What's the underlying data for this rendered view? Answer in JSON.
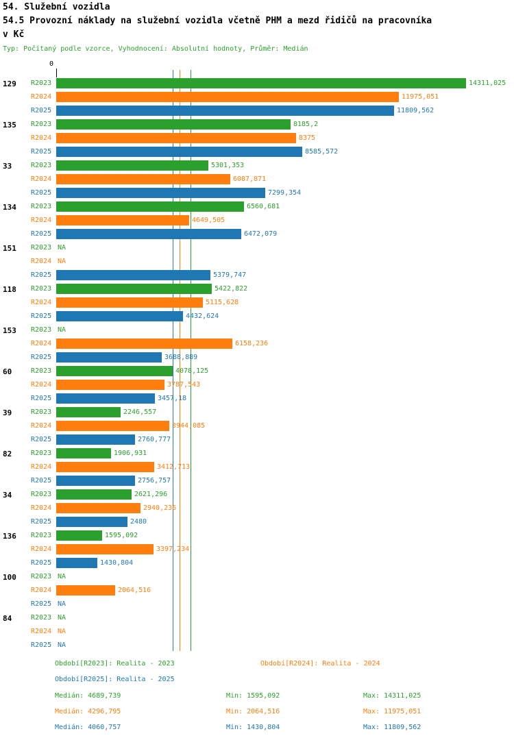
{
  "header": {
    "title": "54. Služební vozidla",
    "subtitle_line1": "54.5 Provozní náklady na služební vozidla včetně PHM a mezd řidičů na pracovníka",
    "subtitle_line2": "v Kč",
    "type_line": "Typ: Počítaný podle vzorce, Vyhodnocení: Absolutní hodnoty, Průměr: Medián"
  },
  "colors": {
    "r2023": "#2ca02c",
    "r2024": "#ff7f0e",
    "r2025": "#1f77b4"
  },
  "chart_data": {
    "type": "bar",
    "orientation": "horizontal",
    "axis_zero_label": "0",
    "na_label": "NA",
    "xmax": 14311.025,
    "series_labels": [
      "R2023",
      "R2024",
      "R2025"
    ],
    "series_keys": [
      "r2023",
      "r2024",
      "r2025"
    ],
    "medians": {
      "r2023": 4689.739,
      "r2024": 4296.795,
      "r2025": 4060.757
    },
    "groups": [
      {
        "id": "129",
        "values": [
          14311.025,
          11975.051,
          11809.562
        ],
        "labels": [
          "14311,025",
          "11975,051",
          "11809,562"
        ]
      },
      {
        "id": "135",
        "values": [
          8185.2,
          8375,
          8585.572
        ],
        "labels": [
          "8185,2",
          "8375",
          "8585,572"
        ]
      },
      {
        "id": "33",
        "values": [
          5301.353,
          6087.871,
          7299.354
        ],
        "labels": [
          "5301,353",
          "6087,871",
          "7299,354"
        ]
      },
      {
        "id": "134",
        "values": [
          6560.681,
          4649.505,
          6472.079
        ],
        "labels": [
          "6560,681",
          "4649,505",
          "6472,079"
        ]
      },
      {
        "id": "151",
        "values": [
          null,
          null,
          5379.747
        ],
        "labels": [
          "NA",
          "NA",
          "5379,747"
        ]
      },
      {
        "id": "118",
        "values": [
          5422.822,
          5115.628,
          4432.624
        ],
        "labels": [
          "5422,822",
          "5115,628",
          "4432,624"
        ]
      },
      {
        "id": "153",
        "values": [
          null,
          6158.236,
          3688.889
        ],
        "labels": [
          "NA",
          "6158,236",
          "3688,889"
        ]
      },
      {
        "id": "60",
        "values": [
          4078.125,
          3787.543,
          3457.18
        ],
        "labels": [
          "4078,125",
          "3787,543",
          "3457,18"
        ]
      },
      {
        "id": "39",
        "values": [
          2246.557,
          3944.085,
          2760.777
        ],
        "labels": [
          "2246,557",
          "3944,085",
          "2760,777"
        ]
      },
      {
        "id": "82",
        "values": [
          1906.931,
          3412.713,
          2756.757
        ],
        "labels": [
          "1906,931",
          "3412,713",
          "2756,757"
        ]
      },
      {
        "id": "34",
        "values": [
          2621.296,
          2940.236,
          2480
        ],
        "labels": [
          "2621,296",
          "2940,236",
          "2480"
        ]
      },
      {
        "id": "136",
        "values": [
          1595.092,
          3397.234,
          1430.804
        ],
        "labels": [
          "1595,092",
          "3397,234",
          "1430,804"
        ]
      },
      {
        "id": "100",
        "values": [
          null,
          2064.516,
          null
        ],
        "labels": [
          "NA",
          "2064,516",
          "NA"
        ]
      },
      {
        "id": "84",
        "values": [
          null,
          null,
          null
        ],
        "labels": [
          "NA",
          "NA",
          "NA"
        ]
      }
    ]
  },
  "legend": [
    {
      "label": "Období[R2023]: Realita - 2023"
    },
    {
      "label": "Období[R2024]: Realita - 2024"
    },
    {
      "label": "Období[R2025]: Realita - 2025"
    }
  ],
  "stats": [
    {
      "median": "Medián: 4689,739",
      "min": "Min: 1595,092",
      "max": "Max: 14311,025"
    },
    {
      "median": "Medián: 4296,795",
      "min": "Min: 2064,516",
      "max": "Max: 11975,051"
    },
    {
      "median": "Medián: 4060,757",
      "min": "Min: 1430,804",
      "max": "Max: 11809,562"
    }
  ]
}
